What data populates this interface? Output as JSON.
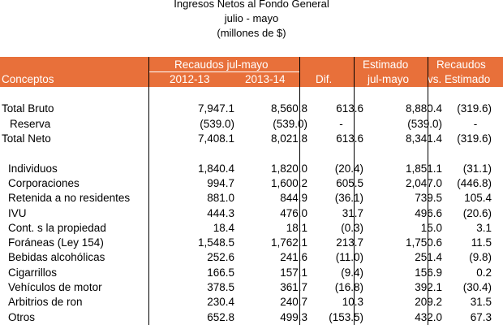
{
  "title": {
    "line1": "Ingresos Netos al Fondo General",
    "line2": "julio - mayo",
    "line3": "(millones de $)"
  },
  "header": {
    "conceptos": "Conceptos",
    "recaudos_group": "Recaudos jul-mayo",
    "col_2012": "2012-13",
    "col_2013": "2013-14",
    "dif": "Dif.",
    "estimado_line1": "Estimado",
    "estimado_line2": "jul-mayo",
    "recaudos_vs_line1": "Recaudos",
    "recaudos_vs_line2": "vs. Estimado",
    "header_color": "#e8703a"
  },
  "rows": [
    {
      "concept": "",
      "v2012": "",
      "v2013": "",
      "dif": "",
      "est": "",
      "vs": ""
    },
    {
      "concept": "Total Bruto",
      "v2012": "7,947.1",
      "v2013": "8,560.8",
      "dif": "613.6",
      "est": "8,880.4",
      "vs": "(319.6)"
    },
    {
      "concept": "Reserva",
      "v2012": "(539.0)",
      "v2013": "(539.0)",
      "dif": "-",
      "est": "(539.0)",
      "vs": "-"
    },
    {
      "concept": "Total Neto",
      "v2012": "7,408.1",
      "v2013": "8,021.8",
      "dif": "613.6",
      "est": "8,341.4",
      "vs": "(319.6)"
    },
    {
      "concept": "",
      "v2012": "",
      "v2013": "",
      "dif": "",
      "est": "",
      "vs": ""
    },
    {
      "concept": "Individuos",
      "v2012": "1,840.4",
      "v2013": "1,820.0",
      "dif": "(20.4)",
      "est": "1,851.1",
      "vs": "(31.1)"
    },
    {
      "concept": "Corporaciones",
      "v2012": "994.7",
      "v2013": "1,600.2",
      "dif": "605.5",
      "est": "2,047.0",
      "vs": "(446.8)"
    },
    {
      "concept": "Retenida a no residentes",
      "v2012": "881.0",
      "v2013": "844.9",
      "dif": "(36.1)",
      "est": "739.5",
      "vs": "105.4"
    },
    {
      "concept": "IVU",
      "v2012": "444.3",
      "v2013": "476.0",
      "dif": "31.7",
      "est": "496.6",
      "vs": "(20.6)"
    },
    {
      "concept": "Cont. s la propiedad",
      "v2012": "18.4",
      "v2013": "18.1",
      "dif": "(0.3)",
      "est": "15.0",
      "vs": "3.1"
    },
    {
      "concept": "Foráneas (Ley 154)",
      "v2012": "1,548.5",
      "v2013": "1,762.1",
      "dif": "213.7",
      "est": "1,750.6",
      "vs": "11.5"
    },
    {
      "concept": "Bebidas alcohólicas",
      "v2012": "252.6",
      "v2013": "241.6",
      "dif": "(11.0)",
      "est": "251.4",
      "vs": "(9.8)"
    },
    {
      "concept": "Cigarrillos",
      "v2012": "166.5",
      "v2013": "157.1",
      "dif": "(9.4)",
      "est": "156.9",
      "vs": "0.2"
    },
    {
      "concept": "Vehículos de motor",
      "v2012": "378.5",
      "v2013": "361.7",
      "dif": "(16.8)",
      "est": "392.1",
      "vs": "(30.4)"
    },
    {
      "concept": "Arbitrios de ron",
      "v2012": "230.4",
      "v2013": "240.7",
      "dif": "10.3",
      "est": "209.2",
      "vs": "31.5"
    },
    {
      "concept": "Otros",
      "v2012": "652.8",
      "v2013": "499.3",
      "dif": "(153.5)",
      "est": "432.0",
      "vs": "67.3"
    }
  ]
}
